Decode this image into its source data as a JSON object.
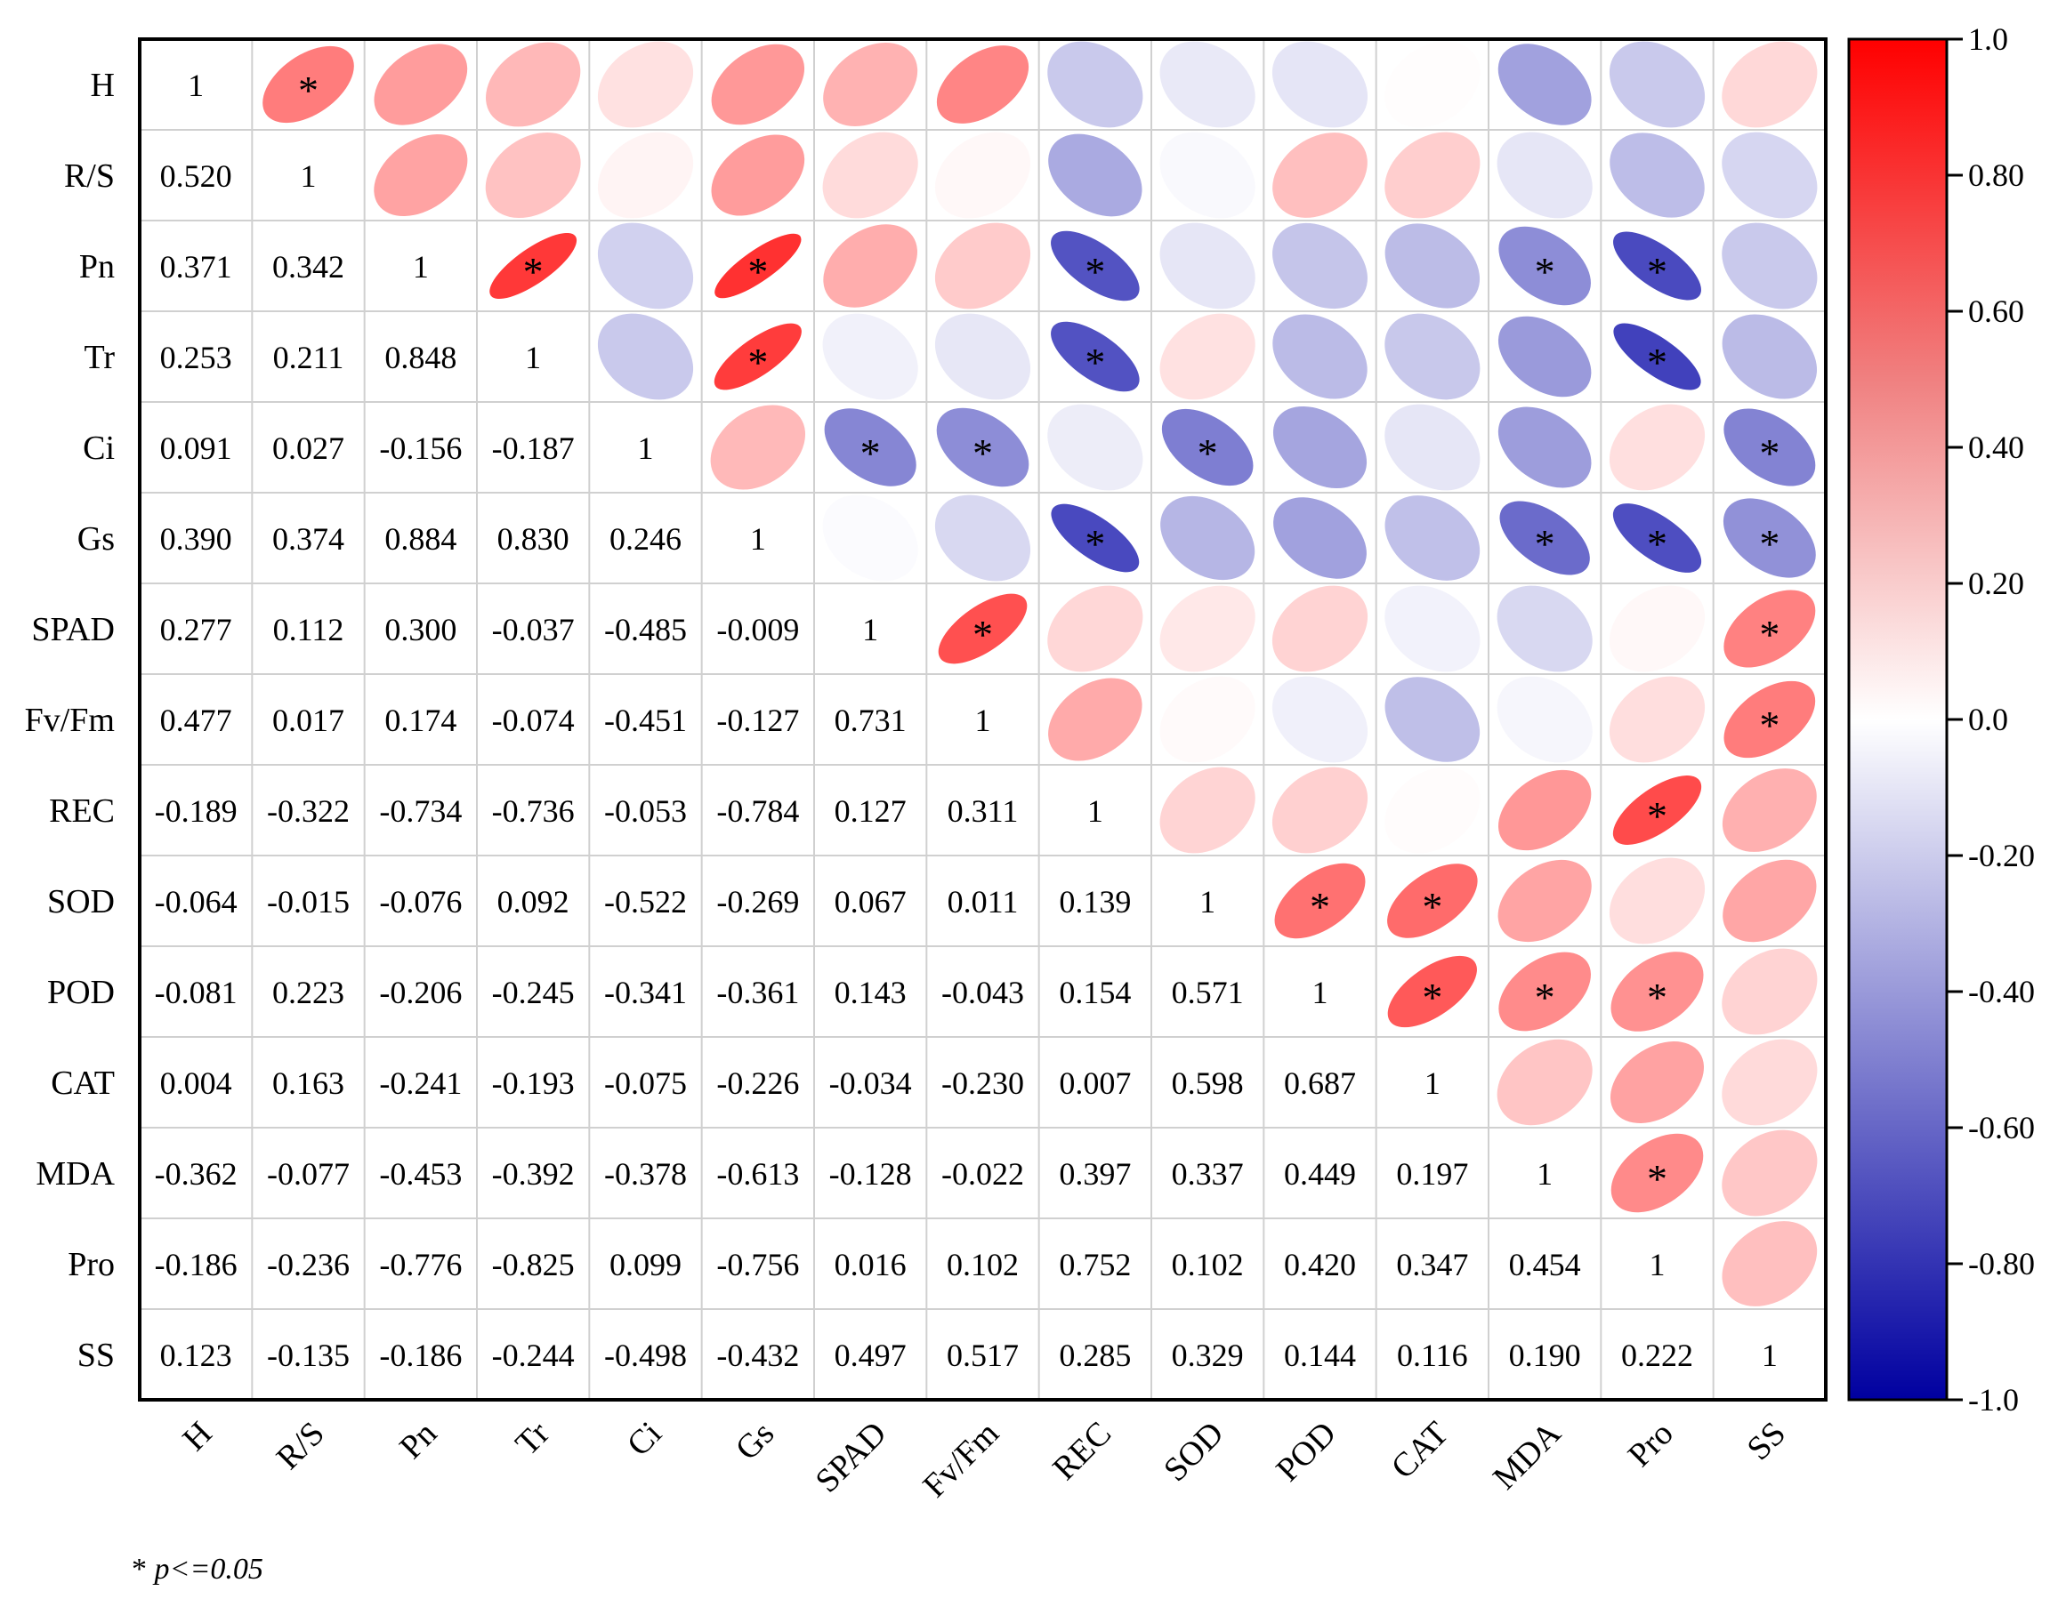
{
  "chart_data": {
    "type": "heatmap",
    "subtype": "correlation-matrix",
    "variables": [
      "H",
      "R/S",
      "Pn",
      "Tr",
      "Ci",
      "Gs",
      "SPAD",
      "Fv/Fm",
      "REC",
      "SOD",
      "POD",
      "CAT",
      "MDA",
      "Pro",
      "SS"
    ],
    "lower_triangle_values": [
      [],
      [
        "0.520"
      ],
      [
        "0.371",
        "0.342"
      ],
      [
        "0.253",
        "0.211",
        "0.848"
      ],
      [
        "0.091",
        "0.027",
        "-0.156",
        "-0.187"
      ],
      [
        "0.390",
        "0.374",
        "0.884",
        "0.830",
        "0.246"
      ],
      [
        "0.277",
        "0.112",
        "0.300",
        "-0.037",
        "-0.485",
        "-0.009"
      ],
      [
        "0.477",
        "0.017",
        "0.174",
        "-0.074",
        "-0.451",
        "-0.127",
        "0.731"
      ],
      [
        "-0.189",
        "-0.322",
        "-0.734",
        "-0.736",
        "-0.053",
        "-0.784",
        "0.127",
        "0.311"
      ],
      [
        "-0.064",
        "-0.015",
        "-0.076",
        "0.092",
        "-0.522",
        "-0.269",
        "0.067",
        "0.011",
        "0.139"
      ],
      [
        "-0.081",
        "0.223",
        "-0.206",
        "-0.245",
        "-0.341",
        "-0.361",
        "0.143",
        "-0.043",
        "0.154",
        "0.571"
      ],
      [
        "0.004",
        "0.163",
        "-0.241",
        "-0.193",
        "-0.075",
        "-0.226",
        "-0.034",
        "-0.230",
        "0.007",
        "0.598",
        "0.687"
      ],
      [
        "-0.362",
        "-0.077",
        "-0.453",
        "-0.392",
        "-0.378",
        "-0.613",
        "-0.128",
        "-0.022",
        "0.397",
        "0.337",
        "0.449",
        "0.197"
      ],
      [
        "-0.186",
        "-0.236",
        "-0.776",
        "-0.825",
        "0.099",
        "-0.756",
        "0.016",
        "0.102",
        "0.752",
        "0.102",
        "0.420",
        "0.347",
        "0.454"
      ],
      [
        "0.123",
        "-0.135",
        "-0.186",
        "-0.244",
        "-0.498",
        "-0.432",
        "0.497",
        "0.517",
        "0.285",
        "0.329",
        "0.144",
        "0.116",
        "0.190",
        "0.222"
      ]
    ],
    "diagonal_label": "1",
    "significant_pairs": [
      [
        1,
        0
      ],
      [
        3,
        2
      ],
      [
        5,
        2
      ],
      [
        5,
        3
      ],
      [
        6,
        4
      ],
      [
        7,
        4
      ],
      [
        7,
        6
      ],
      [
        8,
        2
      ],
      [
        8,
        3
      ],
      [
        8,
        5
      ],
      [
        9,
        4
      ],
      [
        10,
        9
      ],
      [
        11,
        9
      ],
      [
        11,
        10
      ],
      [
        12,
        2
      ],
      [
        12,
        5
      ],
      [
        12,
        10
      ],
      [
        13,
        2
      ],
      [
        13,
        3
      ],
      [
        13,
        5
      ],
      [
        13,
        8
      ],
      [
        13,
        10
      ],
      [
        13,
        12
      ],
      [
        14,
        4
      ],
      [
        14,
        5
      ],
      [
        14,
        6
      ],
      [
        14,
        7
      ]
    ],
    "significance_marker": "*",
    "colorbar": {
      "range": [
        -1.0,
        1.0
      ],
      "tick_labels": [
        "1.0",
        "0.80",
        "0.60",
        "0.40",
        "0.20",
        "0.0",
        "-0.20",
        "-0.40",
        "-0.60",
        "-0.80",
        "-1.0"
      ],
      "colors": {
        "negative": "#1f1fb0",
        "zero": "#ffffff",
        "positive": "#ff1a1a"
      }
    },
    "footnote": {
      "marker": "* ",
      "text": "p<=0.05"
    }
  }
}
